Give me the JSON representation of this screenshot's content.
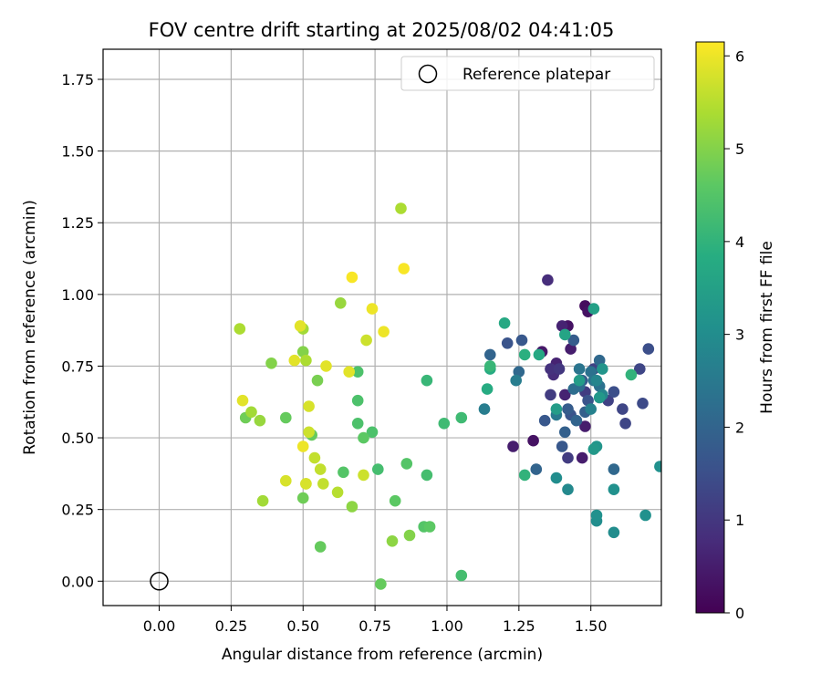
{
  "chart_data": {
    "type": "scatter",
    "title": "FOV centre drift starting at 2025/08/02 04:41:05",
    "xlabel": "Angular distance from reference (arcmin)",
    "ylabel": "Rotation from reference (arcmin)",
    "xlim": [
      -0.195,
      1.745
    ],
    "ylim": [
      -0.085,
      1.855
    ],
    "xticks": [
      "0.00",
      "0.25",
      "0.50",
      "0.75",
      "1.00",
      "1.25",
      "1.50"
    ],
    "yticks": [
      "0.00",
      "0.25",
      "0.50",
      "0.75",
      "1.00",
      "1.25",
      "1.50",
      "1.75"
    ],
    "grid": true,
    "legend": {
      "position": "top-right",
      "entries": [
        "Reference platepar"
      ]
    },
    "reference_point": {
      "x": 0.0,
      "y": 0.0
    },
    "colorbar": {
      "label": "Hours from first FF file",
      "colormap": "viridis",
      "range": [
        0,
        6.15
      ],
      "ticks": [
        "0",
        "1",
        "2",
        "3",
        "4",
        "5",
        "6"
      ]
    },
    "series": [
      {
        "points": [
          [
            1.48,
            0.96,
            0.2
          ],
          [
            1.42,
            0.89,
            0.3
          ],
          [
            1.49,
            0.94,
            0.3
          ],
          [
            1.33,
            0.8,
            0.4
          ],
          [
            1.3,
            0.49,
            0.3
          ],
          [
            1.23,
            0.47,
            0.5
          ],
          [
            1.47,
            0.43,
            0.5
          ],
          [
            1.48,
            0.54,
            0.5
          ],
          [
            1.43,
            0.81,
            0.5
          ],
          [
            1.4,
            0.89,
            0.6
          ],
          [
            1.38,
            0.76,
            0.6
          ],
          [
            1.41,
            0.65,
            0.6
          ],
          [
            1.37,
            0.72,
            0.8
          ],
          [
            1.35,
            1.05,
            0.8
          ],
          [
            1.36,
            0.74,
            0.9
          ],
          [
            1.39,
            0.74,
            1.0
          ],
          [
            1.36,
            0.65,
            1.1
          ],
          [
            1.42,
            0.43,
            1.1
          ],
          [
            1.48,
            0.66,
            1.1
          ],
          [
            1.51,
            0.74,
            1.2
          ],
          [
            1.56,
            0.63,
            1.2
          ],
          [
            1.61,
            0.6,
            1.3
          ],
          [
            1.62,
            0.55,
            1.3
          ],
          [
            1.67,
            0.74,
            1.3
          ],
          [
            1.68,
            0.62,
            1.4
          ],
          [
            1.7,
            0.81,
            1.5
          ],
          [
            1.58,
            0.66,
            1.5
          ],
          [
            1.49,
            0.63,
            1.6
          ],
          [
            1.43,
            0.58,
            1.6
          ],
          [
            1.21,
            0.83,
            1.6
          ],
          [
            1.26,
            0.84,
            1.7
          ],
          [
            1.34,
            0.56,
            1.7
          ],
          [
            1.4,
            0.47,
            1.7
          ],
          [
            1.44,
            0.84,
            1.8
          ],
          [
            1.42,
            0.6,
            1.8
          ],
          [
            1.47,
            0.7,
            1.8
          ],
          [
            1.41,
            0.52,
            1.9
          ],
          [
            1.48,
            0.59,
            1.9
          ],
          [
            1.45,
            0.56,
            2.0
          ],
          [
            1.15,
            0.79,
            2.0
          ],
          [
            1.31,
            0.39,
            2.0
          ],
          [
            1.53,
            0.77,
            2.1
          ],
          [
            1.58,
            0.39,
            2.1
          ],
          [
            1.25,
            0.73,
            2.1
          ],
          [
            1.44,
            0.67,
            2.2
          ],
          [
            1.46,
            0.68,
            2.2
          ],
          [
            1.53,
            0.68,
            2.3
          ],
          [
            1.5,
            0.73,
            2.3
          ],
          [
            1.51,
            0.7,
            2.4
          ],
          [
            1.46,
            0.74,
            2.4
          ],
          [
            1.38,
            0.58,
            2.5
          ],
          [
            1.24,
            0.7,
            2.6
          ],
          [
            1.13,
            0.6,
            2.6
          ],
          [
            1.5,
            0.6,
            2.7
          ],
          [
            1.52,
            0.7,
            2.8
          ],
          [
            1.54,
            0.65,
            2.8
          ],
          [
            1.42,
            0.32,
            2.9
          ],
          [
            1.52,
            0.21,
            3.0
          ],
          [
            1.38,
            0.36,
            3.0
          ],
          [
            1.58,
            0.17,
            3.0
          ],
          [
            1.52,
            0.23,
            3.1
          ],
          [
            1.58,
            0.32,
            3.1
          ],
          [
            1.69,
            0.23,
            3.1
          ],
          [
            1.74,
            0.4,
            3.1
          ],
          [
            1.52,
            0.47,
            3.2
          ],
          [
            1.54,
            0.74,
            3.2
          ],
          [
            1.53,
            0.64,
            3.3
          ],
          [
            1.51,
            0.46,
            3.3
          ],
          [
            1.38,
            0.6,
            3.4
          ],
          [
            1.46,
            0.7,
            3.4
          ],
          [
            1.51,
            0.95,
            3.5
          ],
          [
            1.41,
            0.86,
            3.6
          ],
          [
            1.32,
            0.79,
            3.7
          ],
          [
            1.2,
            0.9,
            3.7
          ],
          [
            1.14,
            0.67,
            3.8
          ],
          [
            1.15,
            0.74,
            3.8
          ],
          [
            1.27,
            0.79,
            3.9
          ],
          [
            1.27,
            0.37,
            4.0
          ],
          [
            1.64,
            0.72,
            4.0
          ],
          [
            1.15,
            0.75,
            4.1
          ],
          [
            0.93,
            0.7,
            4.1
          ],
          [
            0.99,
            0.55,
            4.2
          ],
          [
            1.05,
            0.57,
            4.2
          ],
          [
            1.05,
            0.02,
            4.3
          ],
          [
            0.93,
            0.37,
            4.3
          ],
          [
            0.76,
            0.39,
            4.3
          ],
          [
            0.74,
            0.52,
            4.4
          ],
          [
            0.69,
            0.55,
            4.4
          ],
          [
            0.69,
            0.63,
            4.4
          ],
          [
            0.69,
            0.73,
            4.4
          ],
          [
            0.64,
            0.38,
            4.5
          ],
          [
            0.86,
            0.41,
            4.5
          ],
          [
            0.92,
            0.19,
            4.5
          ],
          [
            0.94,
            0.19,
            4.6
          ],
          [
            0.82,
            0.28,
            4.6
          ],
          [
            0.71,
            0.5,
            4.6
          ],
          [
            0.77,
            -0.01,
            4.7
          ],
          [
            0.56,
            0.12,
            4.7
          ],
          [
            0.44,
            0.57,
            4.7
          ],
          [
            0.53,
            0.51,
            4.7
          ],
          [
            0.3,
            0.57,
            4.8
          ],
          [
            0.5,
            0.29,
            4.8
          ],
          [
            0.55,
            0.7,
            4.9
          ],
          [
            0.39,
            0.76,
            5.0
          ],
          [
            0.5,
            0.8,
            5.0
          ],
          [
            0.87,
            0.16,
            5.0
          ],
          [
            0.81,
            0.14,
            5.1
          ],
          [
            0.67,
            0.26,
            5.1
          ],
          [
            0.63,
            0.97,
            5.2
          ],
          [
            0.35,
            0.56,
            5.2
          ],
          [
            0.32,
            0.59,
            5.3
          ],
          [
            0.5,
            0.88,
            5.3
          ],
          [
            0.36,
            0.28,
            5.3
          ],
          [
            0.28,
            0.88,
            5.4
          ],
          [
            0.51,
            0.77,
            5.4
          ],
          [
            0.84,
            1.3,
            5.4
          ],
          [
            0.62,
            0.31,
            5.5
          ],
          [
            0.56,
            0.39,
            5.6
          ],
          [
            0.54,
            0.43,
            5.6
          ],
          [
            0.51,
            0.34,
            5.6
          ],
          [
            0.57,
            0.34,
            5.6
          ],
          [
            0.52,
            0.52,
            5.7
          ],
          [
            0.71,
            0.37,
            5.7
          ],
          [
            0.72,
            0.84,
            5.7
          ],
          [
            0.44,
            0.35,
            5.8
          ],
          [
            0.51,
            0.34,
            5.8
          ],
          [
            0.52,
            0.61,
            5.8
          ],
          [
            0.58,
            0.75,
            5.9
          ],
          [
            0.66,
            0.73,
            5.9
          ],
          [
            0.29,
            0.63,
            5.9
          ],
          [
            0.49,
            0.89,
            5.9
          ],
          [
            0.47,
            0.77,
            5.9
          ],
          [
            0.5,
            0.47,
            6.0
          ],
          [
            0.74,
            0.95,
            6.0
          ],
          [
            0.78,
            0.87,
            6.0
          ],
          [
            0.67,
            1.06,
            6.1
          ],
          [
            0.85,
            1.09,
            6.1
          ]
        ]
      }
    ]
  }
}
